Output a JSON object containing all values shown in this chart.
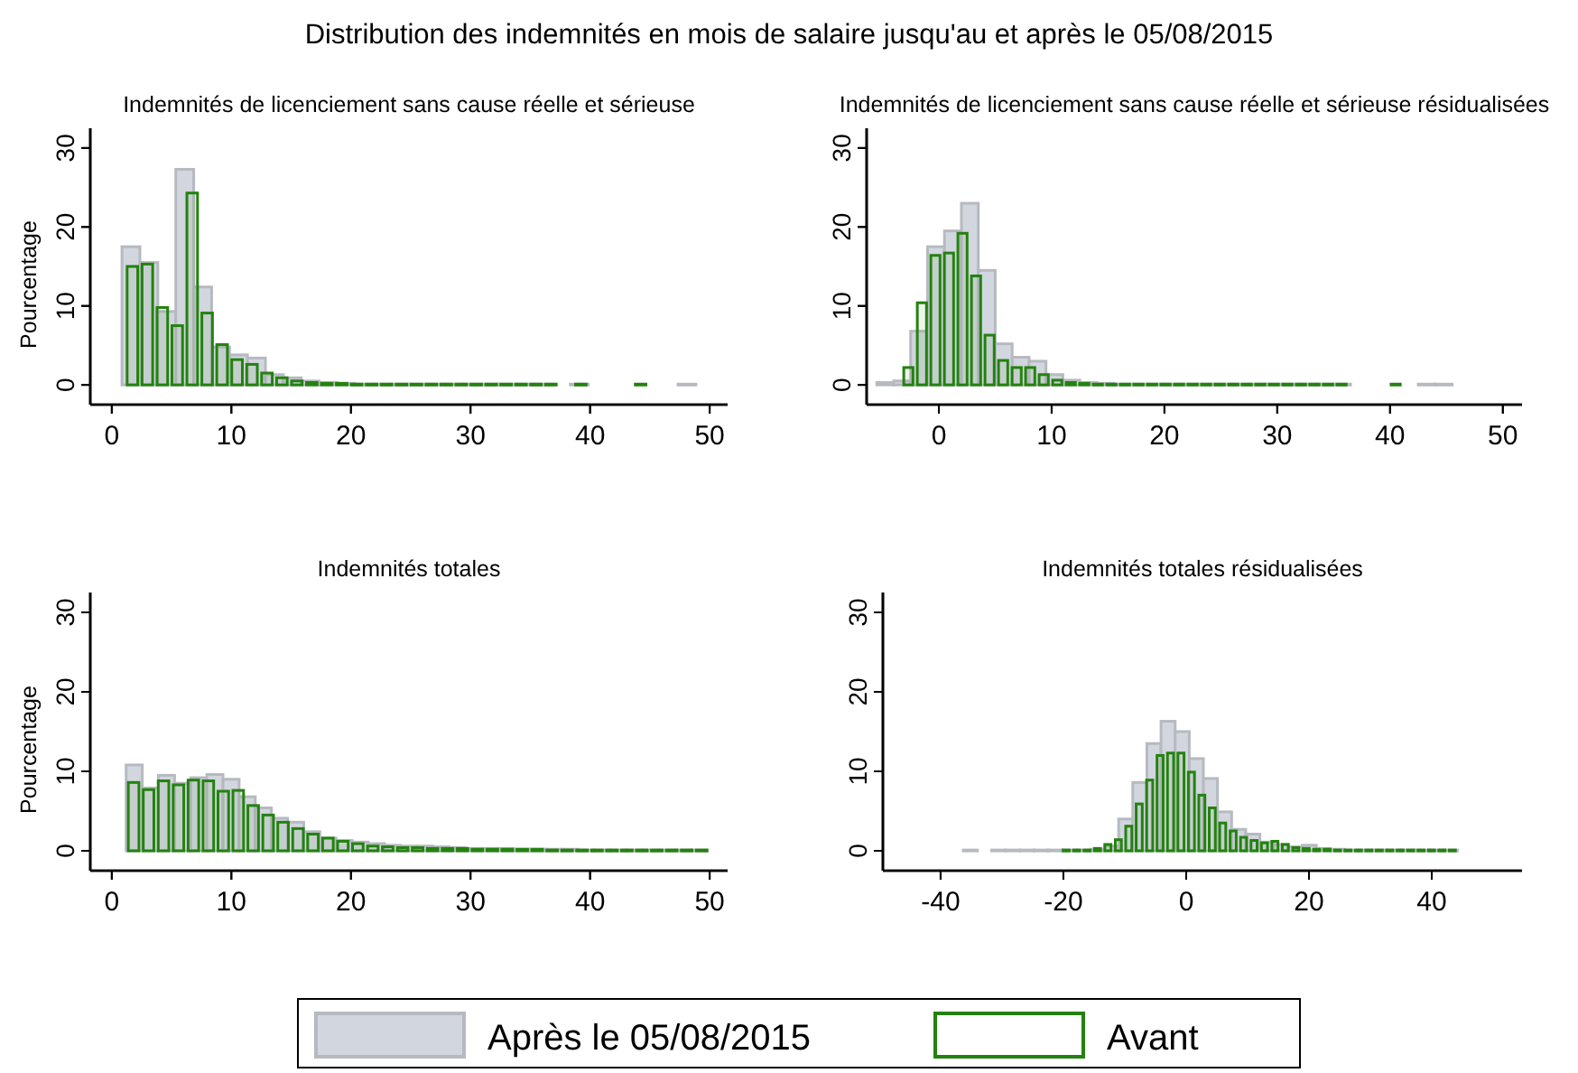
{
  "chart_data": [
    {
      "type": "histogram",
      "xlim": [
        -1.8,
        51.5
      ],
      "xticks": [
        0,
        10,
        20,
        30,
        40,
        50
      ],
      "ylim": [
        -2.5,
        32.5
      ],
      "yticks": [
        0,
        10,
        20,
        30
      ],
      "tick_labels": false,
      "legend": "bottom",
      "bins": [
        1.1,
        2.35,
        3.6,
        4.85,
        6.1,
        7.35,
        8.6,
        9.85,
        11.1,
        12.35,
        13.6,
        14.85,
        16.1,
        17.35,
        18.6,
        19.85,
        21.1,
        22.35,
        23.6,
        24.85,
        26.1,
        27.35,
        28.6,
        29.85,
        31.1,
        32.35,
        33.6,
        34.85,
        36.1,
        37.35,
        38.6,
        39.85,
        41.1,
        42.35,
        43.6,
        44.85,
        46.1,
        47.35,
        48.6,
        49.85
      ],
      "series": [
        {
          "name": "Avant",
          "color": "#23820f",
          "values": [
            15,
            15.3,
            9.8,
            7.5,
            24.3,
            9.1,
            5.1,
            3.2,
            2.6,
            1.5,
            0.9,
            0.5,
            0.3,
            0.2,
            0.2,
            0.1,
            0.1,
            0.1,
            0.1,
            0.1,
            0.1,
            0.1,
            0.1,
            0.1,
            0.1,
            0.1,
            0.1,
            0.1,
            0.1,
            0,
            0.1,
            0,
            0,
            0,
            0.1,
            0,
            0,
            0,
            0
          ]
        }
      ]
    },
    {
      "type": "histogram",
      "title": "Distribution des indemnités en mois de salaire jusqu'au et après le 05/08/2015",
      "subtitle": "Indemnités de licenciement sans cause réelle et sérieuse",
      "ylabel": "Pourcentage",
      "xlim": [
        -1.8,
        51.5
      ],
      "xticks": [
        0,
        10,
        20,
        30,
        40,
        50
      ],
      "ylim": [
        -2.5,
        32.5
      ],
      "yticks": [
        0,
        10,
        20,
        30
      ],
      "legend": "bottom",
      "bins": [
        0.85,
        2.35,
        3.85,
        5.35,
        6.85,
        8.35,
        9.85,
        11.35,
        12.85,
        14.35,
        15.85,
        17.35,
        18.85,
        20.35,
        21.85,
        23.35,
        24.85,
        26.35,
        27.85,
        29.35,
        30.85,
        32.35,
        33.85,
        35.35,
        36.85,
        38.35,
        39.85,
        41.35,
        42.85,
        44.35,
        45.85,
        47.35,
        48.85,
        50.35
      ],
      "series": [
        {
          "name": "Après le 05/08/2015",
          "color": "#d2d6de",
          "values": [
            17.5,
            15.5,
            9.3,
            27.3,
            12.4,
            4.8,
            3.8,
            3.4,
            1.3,
            0.9,
            0.5,
            0.3,
            0.2,
            0.1,
            0.1,
            0.1,
            0.1,
            0.1,
            0.1,
            0.1,
            0.1,
            0.1,
            0.1,
            0.1,
            0,
            0.1,
            0,
            0,
            0,
            0,
            0,
            0.1,
            0
          ]
        }
      ]
    },
    {
      "type": "histogram",
      "xlim": [
        -6.4,
        51.7
      ],
      "xticks": [
        0,
        10,
        20,
        30,
        40,
        50
      ],
      "ylim": [
        -2.5,
        32.5
      ],
      "yticks": [
        0,
        10,
        20,
        30
      ],
      "tick_labels": false,
      "bins": [
        -3.3,
        -2.1,
        -0.9,
        0.3,
        1.5,
        2.7,
        3.9,
        5.1,
        6.3,
        7.5,
        8.7,
        9.9,
        11.1,
        12.3,
        13.5,
        14.7,
        15.9,
        17.1,
        18.3,
        19.5,
        20.7,
        21.9,
        23.1,
        24.3,
        25.5,
        26.7,
        27.9,
        29.1,
        30.3,
        31.5,
        32.7,
        33.9,
        35.1,
        36.3,
        37.5,
        38.7,
        39.9,
        41.1
      ],
      "series": [
        {
          "color": "#23820f",
          "values": [
            2.2,
            10.4,
            16.4,
            16.7,
            19.2,
            13.8,
            6.3,
            3.1,
            2.2,
            2.2,
            1.3,
            0.6,
            0.3,
            0.2,
            0.1,
            0.1,
            0.1,
            0.1,
            0.1,
            0.1,
            0.1,
            0.1,
            0.1,
            0.1,
            0.1,
            0.1,
            0.1,
            0.1,
            0.1,
            0.1,
            0.1,
            0.1,
            0.1,
            0,
            0,
            0,
            0.1
          ]
        }
      ]
    },
    {
      "type": "histogram",
      "subtitle": "Indemnités de licenciement sans cause réelle et sérieuse résidualisées",
      "xlim": [
        -6.4,
        51.7
      ],
      "xticks": [
        0,
        10,
        20,
        30,
        40,
        50
      ],
      "ylim": [
        -2.5,
        32.5
      ],
      "yticks": [
        0,
        10,
        20,
        30
      ],
      "bins": [
        -5.5,
        -4,
        -2.5,
        -1,
        0.5,
        2,
        3.5,
        5,
        6.5,
        8,
        9.5,
        11,
        12.5,
        14,
        15.5,
        17,
        18.5,
        20,
        21.5,
        23,
        24.5,
        26,
        27.5,
        29,
        30.5,
        32,
        33.5,
        35,
        36.5,
        38,
        39.5,
        41,
        42.5,
        44,
        45.5,
        47
      ],
      "series": [
        {
          "color": "#d2d6de",
          "values": [
            0.3,
            0.5,
            6.8,
            17.5,
            19.5,
            23,
            14.5,
            5.2,
            3.5,
            3.0,
            1.3,
            0.6,
            0.3,
            0.2,
            0.1,
            0.1,
            0.1,
            0.1,
            0.1,
            0.1,
            0.1,
            0.1,
            0.1,
            0.1,
            0.1,
            0.1,
            0.1,
            0.1,
            0,
            0,
            0,
            0,
            0.1,
            0.1,
            0
          ]
        }
      ]
    },
    {
      "type": "histogram",
      "xlim": [
        -1.8,
        51.5
      ],
      "xticks": [
        0,
        10,
        20,
        30,
        40,
        50
      ],
      "ylim": [
        -2.5,
        32.5
      ],
      "yticks": [
        0,
        10,
        20,
        30
      ],
      "tick_labels": false,
      "bins": [
        1.2,
        2.45,
        3.7,
        4.95,
        6.2,
        7.45,
        8.7,
        9.95,
        11.2,
        12.45,
        13.7,
        14.95,
        16.2,
        17.45,
        18.7,
        19.95,
        21.2,
        22.45,
        23.7,
        24.95,
        26.2,
        27.45,
        28.7,
        29.95,
        31.2,
        32.45,
        33.7,
        34.95,
        36.2,
        37.45,
        38.7,
        39.95,
        41.2,
        42.45,
        43.7,
        44.95,
        46.2,
        47.45,
        48.7,
        49.95
      ],
      "series": [
        {
          "color": "#23820f",
          "values": [
            8.6,
            7.7,
            8.8,
            8.3,
            8.9,
            8.8,
            7.5,
            7.6,
            5.7,
            4.5,
            3.6,
            2.8,
            2.1,
            1.6,
            1.2,
            0.9,
            0.6,
            0.5,
            0.4,
            0.4,
            0.3,
            0.3,
            0.3,
            0.2,
            0.2,
            0.2,
            0.2,
            0.2,
            0.1,
            0.1,
            0.1,
            0.1,
            0.1,
            0.1,
            0.1,
            0.1,
            0.1,
            0.1,
            0.1
          ]
        }
      ]
    },
    {
      "type": "histogram",
      "subtitle": "Indemnités totales",
      "ylabel": "Pourcentage",
      "xlim": [
        -1.8,
        51.5
      ],
      "xticks": [
        0,
        10,
        20,
        30,
        40,
        50
      ],
      "ylim": [
        -2.5,
        32.5
      ],
      "yticks": [
        0,
        10,
        20,
        30
      ],
      "bins": [
        1.2,
        2.55,
        3.9,
        5.25,
        6.6,
        7.95,
        9.3,
        10.65,
        12,
        13.35,
        14.7,
        16.05,
        17.4,
        18.75,
        20.1,
        21.45,
        22.8,
        24.15,
        25.5,
        26.85,
        28.2,
        29.55,
        30.9,
        32.25,
        33.6,
        34.95,
        36.3,
        37.65,
        39,
        40.35,
        41.7,
        43.05,
        44.4,
        45.75,
        47.1,
        48.45,
        49.8
      ],
      "series": [
        {
          "color": "#d2d6de",
          "values": [
            10.8,
            7.9,
            9.5,
            8.5,
            9.2,
            9.6,
            9.0,
            6.8,
            5.4,
            4.1,
            3.6,
            2.4,
            1.6,
            1.3,
            1.1,
            0.9,
            0.7,
            0.6,
            0.6,
            0.5,
            0.4,
            0.3,
            0.3,
            0.3,
            0.2,
            0.2,
            0.2,
            0.2,
            0.1,
            0.1,
            0.1,
            0.1,
            0.1,
            0.1,
            0.1,
            0.1
          ]
        }
      ]
    },
    {
      "type": "histogram",
      "xlim": [
        -49.4,
        54.7
      ],
      "xticks": [
        -40,
        -20,
        0,
        20,
        40
      ],
      "ylim": [
        -2.5,
        32.5
      ],
      "yticks": [
        0,
        10,
        20,
        30
      ],
      "tick_labels": false,
      "bins": [
        -20.4,
        -18.7,
        -17,
        -15.3,
        -13.6,
        -11.9,
        -10.2,
        -8.5,
        -6.8,
        -5.1,
        -3.4,
        -1.7,
        0,
        1.7,
        3.4,
        5.1,
        6.8,
        8.5,
        10.2,
        11.9,
        13.6,
        15.3,
        17,
        18.7,
        20.4,
        22.1,
        23.8,
        25.5,
        27.2,
        28.9,
        30.6,
        32.3,
        34,
        35.7,
        37.4,
        39.1,
        40.8,
        42.5,
        44.2
      ],
      "series": [
        {
          "color": "#23820f",
          "values": [
            0.1,
            0.1,
            0.1,
            0.3,
            0.8,
            1.4,
            3.1,
            5.9,
            8.9,
            12.0,
            12.3,
            12.3,
            9.9,
            7.0,
            5.4,
            3.5,
            2.5,
            1.7,
            1.3,
            1.0,
            1.2,
            0.8,
            0.4,
            0.3,
            0.2,
            0.2,
            0.1,
            0.1,
            0.1,
            0.1,
            0.1,
            0.1,
            0.1,
            0.1,
            0.1,
            0.1,
            0.1,
            0.1
          ]
        }
      ]
    },
    {
      "type": "histogram",
      "subtitle": "Indemnités totales résidualisées",
      "xlim": [
        -49.4,
        54.7
      ],
      "xticks": [
        -40,
        -20,
        0,
        20,
        40
      ],
      "ylim": [
        -2.5,
        32.5
      ],
      "yticks": [
        0,
        10,
        20,
        30
      ],
      "bins": [
        -36.3,
        -34,
        -31.7,
        -29.4,
        -27.1,
        -24.8,
        -22.5,
        -20.2,
        -17.9,
        -15.6,
        -13.3,
        -11,
        -8.7,
        -6.4,
        -4.1,
        -1.8,
        0.5,
        2.8,
        5.1,
        7.4,
        9.7,
        12,
        14.3,
        16.6,
        18.9,
        21.2,
        23.5,
        25.8,
        28.1,
        30.4,
        32.7,
        35,
        37.3,
        39.6,
        41.9,
        44.2
      ],
      "series": [
        {
          "color": "#d2d6de",
          "values": [
            0.1,
            0,
            0.1,
            0.1,
            0.1,
            0.1,
            0.1,
            0.1,
            0.1,
            0.2,
            0.6,
            4.0,
            8.6,
            13.5,
            16.3,
            15.0,
            11.6,
            9.1,
            4.9,
            2.7,
            2.1,
            1.1,
            0.8,
            0.5,
            0.7,
            0.3,
            0.2,
            0.1,
            0.1,
            0.1,
            0.1,
            0.1,
            0.1,
            0.1,
            0.1
          ]
        }
      ]
    }
  ]
}
